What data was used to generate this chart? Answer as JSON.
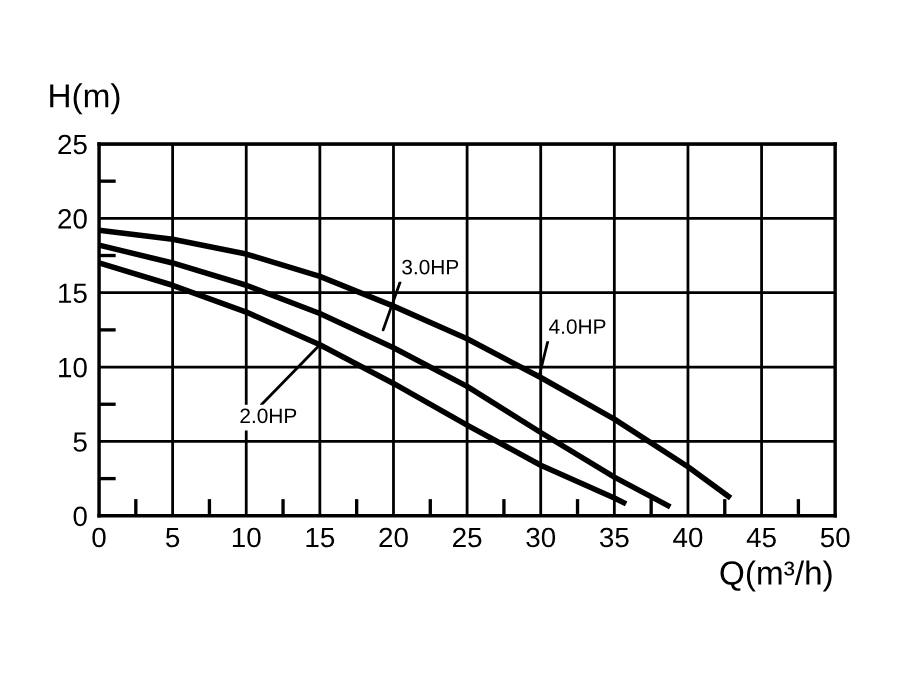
{
  "chart_data": {
    "type": "line",
    "xlabel": "Q(m³/h)",
    "ylabel": "H(m)",
    "series": [
      {
        "color": "#000000",
        "x": [
          0,
          5,
          10,
          15,
          20,
          25,
          30,
          35,
          35.8
        ],
        "values": [
          17,
          15.5,
          13.7,
          11.5,
          8.9,
          6.1,
          3.4,
          1.2,
          0.8
        ]
      },
      {
        "color": "#000000",
        "x": [
          0,
          5,
          10,
          15,
          20,
          25,
          30,
          35,
          38.8
        ],
        "values": [
          18.2,
          17,
          15.5,
          13.6,
          11.3,
          8.7,
          5.6,
          2.6,
          0.6
        ]
      },
      {
        "color": "#000000",
        "x": [
          0,
          5,
          10,
          15,
          20,
          25,
          30,
          35,
          40,
          42.9
        ],
        "values": [
          19.2,
          18.6,
          17.6,
          16.1,
          14.1,
          11.9,
          9.3,
          6.5,
          3.3,
          1.2
        ]
      }
    ],
    "annotations": [
      {
        "text": "2.0HP",
        "x": 15,
        "y": 11.5
      },
      {
        "text": "3.0HP",
        "x": 19.3,
        "y": 12.5
      },
      {
        "text": "4.0HP",
        "x": 29.9,
        "y": 9.4
      }
    ],
    "xlim": [
      0,
      50
    ],
    "ylim": [
      0,
      25
    ],
    "xticks": [
      0,
      {
        "value": 2.5,
        "label": null
      },
      5,
      {
        "value": 7.5,
        "label": null
      },
      10,
      {
        "value": 12.5,
        "label": null
      },
      15,
      {
        "value": 17.5,
        "label": null
      },
      20,
      {
        "value": 22.5,
        "label": null
      },
      25,
      {
        "value": 27.5,
        "label": null
      },
      30,
      {
        "value": 32.5,
        "label": null
      },
      35,
      {
        "value": 37.5,
        "label": null
      },
      40,
      {
        "value": 42.5,
        "label": null
      },
      45,
      {
        "value": 47.5,
        "label": null
      },
      50
    ],
    "yticks": [
      0,
      {
        "value": 2.5,
        "label": null
      },
      5,
      {
        "value": 7.5,
        "label": null
      },
      10,
      {
        "value": 12.5,
        "label": null
      },
      15,
      {
        "value": 17.5,
        "label": null
      },
      20,
      {
        "value": 22.5,
        "label": null
      },
      25
    ],
    "grid": true,
    "marker": "none",
    "line_style": "solid"
  }
}
